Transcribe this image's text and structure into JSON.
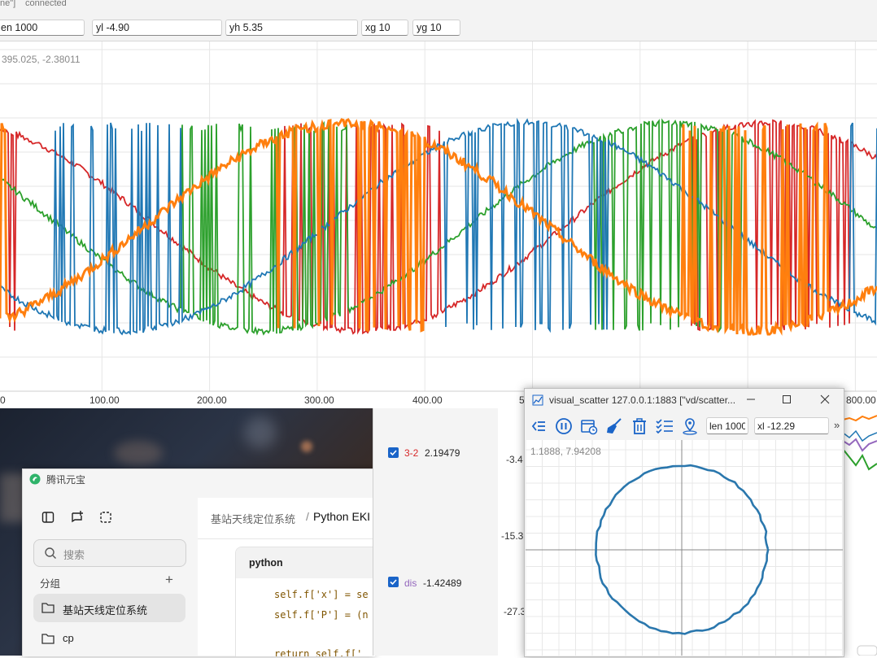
{
  "top_window": {
    "status_left": "ne\"]",
    "status": "connected",
    "inputs": {
      "len": "en 1000",
      "yl": "yl -4.90",
      "yh": "yh 5.35",
      "xg": "xg 10",
      "yg": "yg 10"
    },
    "cursor_coord": "395.025, -2.38011",
    "x_ticks": [
      "0",
      "100.00",
      "200.00",
      "300.00",
      "400.00",
      "5",
      "800.00"
    ]
  },
  "chart_data": {
    "type": "line",
    "x_range": [
      0,
      820
    ],
    "y_range": [
      -4.9,
      5.35
    ],
    "grid": true,
    "x_grid_step": 10,
    "y_grid_step": 10,
    "series_colors": [
      "#d62728",
      "#2ca02c",
      "#1f77b4",
      "#ff7f0e"
    ]
  },
  "middle_panel": {
    "items": [
      {
        "label": "3-2",
        "value": "2.19479",
        "color": "#d62728"
      },
      {
        "label": "dis",
        "value": "-1.42489",
        "color": "#9467bd"
      }
    ],
    "y_ticks": [
      "-3.4",
      "-15.3",
      "-27.3"
    ]
  },
  "yuanbao": {
    "title": "腾讯元宝",
    "search_placeholder": "搜索",
    "group_label": "分组",
    "add": "+",
    "groups": [
      "基站天线定位系统",
      "cp"
    ],
    "breadcrumb": "基站天线定位系统",
    "breadcrumb_sep": "/",
    "breadcrumb_current": "Python EKI",
    "code_lang": "python",
    "code_lines": [
      "self.f['x'] = se",
      "self.f['P'] = (n",
      "return self.f['"
    ]
  },
  "scatter_window": {
    "title": "visual_scatter 127.0.0.1:1883 [\"vd/scatter...",
    "inputs": {
      "len": "len 1000",
      "xl": "xl -12.29"
    },
    "more": "»",
    "cursor_coord": "1.1888, 7.94208",
    "circle_color": "#2a77ad"
  },
  "icons": [
    "chart-icon",
    "collapse-icon",
    "pause-icon",
    "schedule-icon",
    "broom-icon",
    "trash-icon",
    "checklist-icon",
    "location-icon",
    "minimize-icon",
    "maximize-icon",
    "close-icon",
    "yuanbao-logo-icon",
    "sidebar-icon",
    "new-chat-icon",
    "select-icon",
    "search-icon",
    "folder-icon"
  ]
}
